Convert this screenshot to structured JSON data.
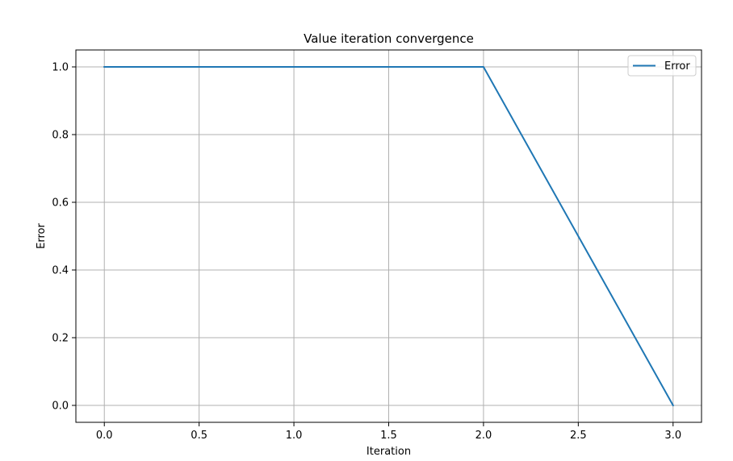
{
  "chart_data": {
    "type": "line",
    "title": "Value iteration convergence",
    "xlabel": "Iteration",
    "ylabel": "Error",
    "xlim": [
      -0.15,
      3.15
    ],
    "ylim": [
      -0.05,
      1.05
    ],
    "xticks": [
      0.0,
      0.5,
      1.0,
      1.5,
      2.0,
      2.5,
      3.0
    ],
    "xtick_labels": [
      "0.0",
      "0.5",
      "1.0",
      "1.5",
      "2.0",
      "2.5",
      "3.0"
    ],
    "yticks": [
      0.0,
      0.2,
      0.4,
      0.6,
      0.8,
      1.0
    ],
    "ytick_labels": [
      "0.0",
      "0.2",
      "0.4",
      "0.6",
      "0.8",
      "1.0"
    ],
    "grid": true,
    "legend_position": "top-right",
    "series": [
      {
        "name": "Error",
        "color": "#1f77b4",
        "x": [
          0,
          1,
          2,
          3
        ],
        "y": [
          1.0,
          1.0,
          1.0,
          0.0
        ]
      }
    ]
  }
}
